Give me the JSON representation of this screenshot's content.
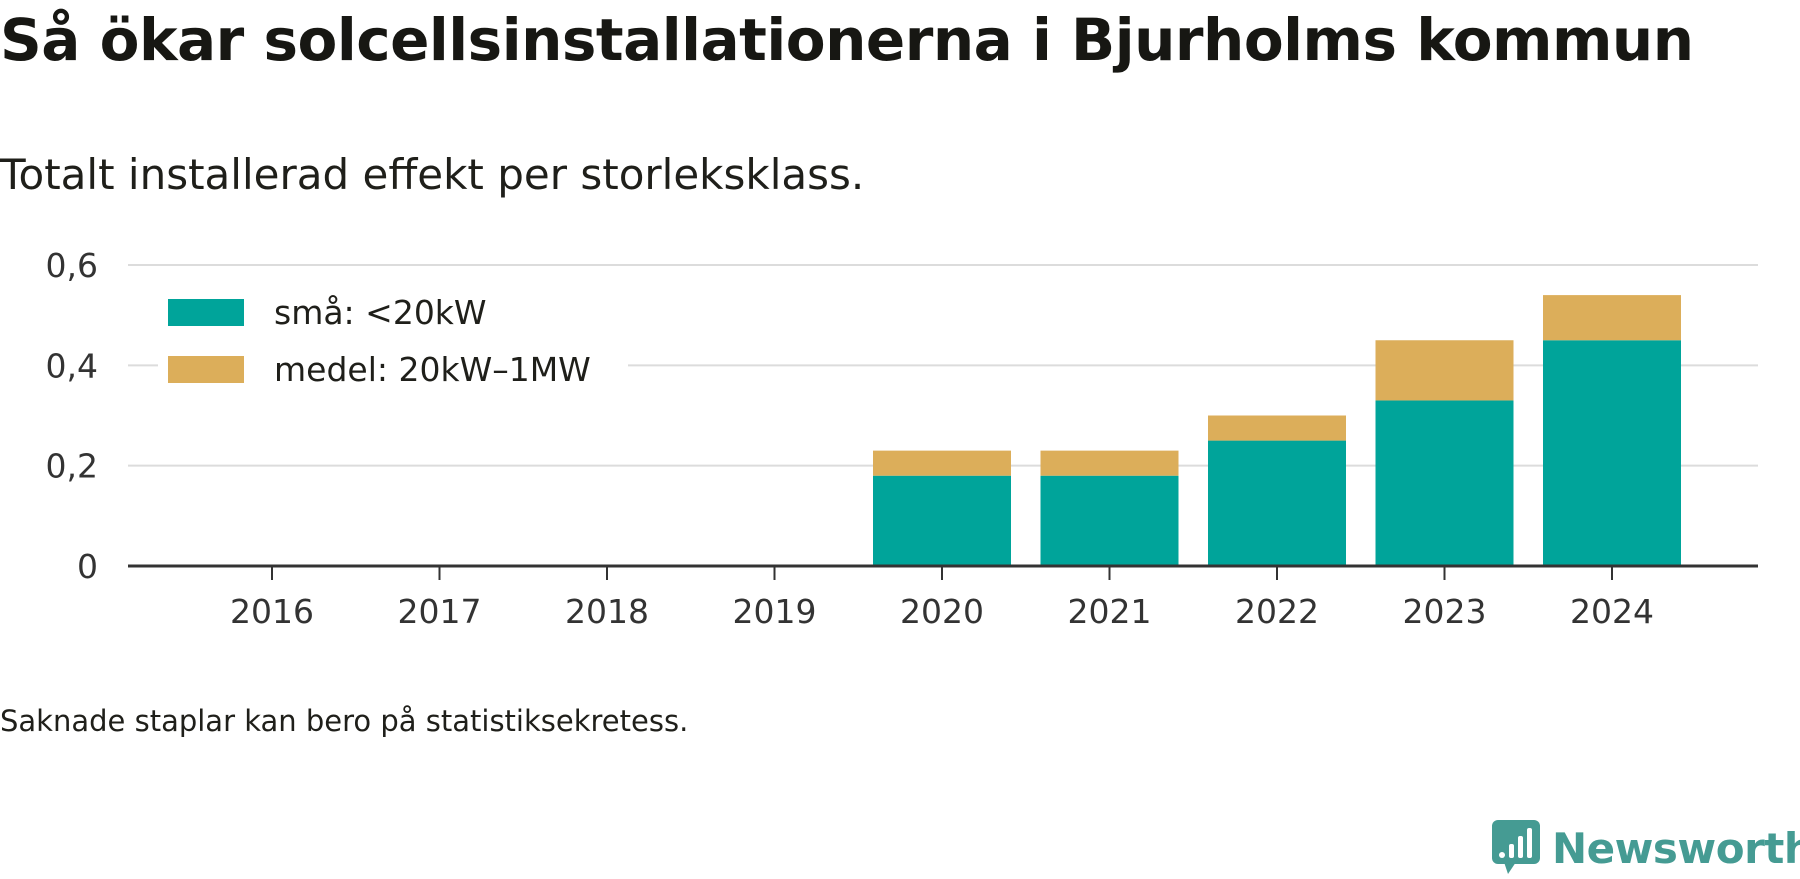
{
  "title": "Så ökar solcellsinstallationerna i Bjurholms kommun",
  "subtitle": "Totalt installerad effekt per storleksklass.",
  "footnote": "Saknade staplar kan bero på statistiksekretess.",
  "brand": {
    "name": "Newsworthy",
    "icon": "newsworthy-logo-icon",
    "color": "#459b93"
  },
  "chart_data": {
    "type": "bar",
    "stacked": true,
    "categories": [
      "2016",
      "2017",
      "2018",
      "2019",
      "2020",
      "2021",
      "2022",
      "2023",
      "2024"
    ],
    "series": [
      {
        "name": "små: <20kW",
        "color": "#00a49a",
        "values": [
          0,
          0,
          0,
          0,
          0.18,
          0.18,
          0.25,
          0.33,
          0.45
        ]
      },
      {
        "name": "medel: 20kW–1MW",
        "color": "#dcae5a",
        "values": [
          0,
          0,
          0,
          0,
          0.05,
          0.05,
          0.05,
          0.12,
          0.09
        ]
      }
    ],
    "yticks": [
      0,
      0.2,
      0.4,
      0.6
    ],
    "ytick_labels": [
      "0",
      "0,2",
      "0,4",
      "0,6"
    ],
    "ylim": [
      0,
      0.6
    ],
    "grid": true,
    "legend": "top-left"
  }
}
